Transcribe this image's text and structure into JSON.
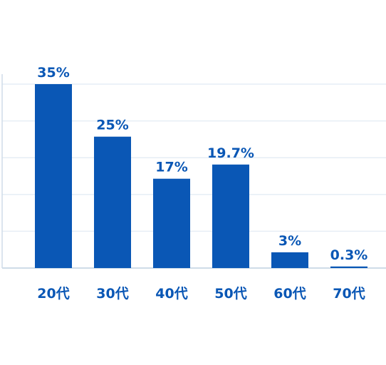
{
  "chart_data": {
    "type": "bar",
    "categories": [
      "20代",
      "30代",
      "40代",
      "50代",
      "60代",
      "70代"
    ],
    "values": [
      35,
      25,
      17,
      19.7,
      3,
      0.3
    ],
    "data_labels": [
      "35%",
      "25%",
      "17%",
      "19.7%",
      "3%",
      "0.3%"
    ],
    "ylim": [
      0,
      35
    ],
    "grid": true,
    "bar_color": "#0a57b5",
    "label_color": "#0a57b5",
    "grid_color": "#e6eef5",
    "axis_color": "#cfdce8"
  }
}
